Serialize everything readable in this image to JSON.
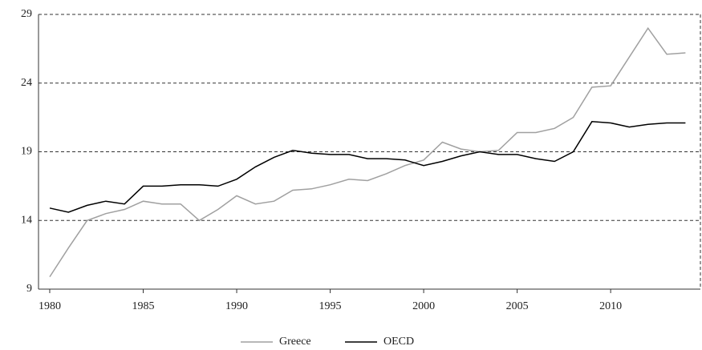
{
  "chart_data": {
    "type": "line",
    "x": [
      1980,
      1981,
      1982,
      1983,
      1984,
      1985,
      1986,
      1987,
      1988,
      1989,
      1990,
      1991,
      1992,
      1993,
      1994,
      1995,
      1996,
      1997,
      1998,
      1999,
      2000,
      2001,
      2002,
      2003,
      2004,
      2005,
      2006,
      2007,
      2008,
      2009,
      2010,
      2011,
      2012,
      2013,
      2014
    ],
    "series": [
      {
        "name": "Greece",
        "color": "#a0a0a0",
        "values": [
          9.9,
          12.0,
          14.0,
          14.5,
          14.8,
          15.4,
          15.2,
          15.2,
          14.0,
          14.8,
          15.8,
          15.2,
          15.4,
          16.2,
          16.3,
          16.6,
          17.0,
          16.9,
          17.4,
          18.0,
          18.4,
          19.7,
          19.2,
          19.0,
          19.1,
          20.4,
          20.4,
          20.7,
          21.5,
          23.7,
          23.8,
          25.9,
          28.0,
          26.1,
          26.2
        ]
      },
      {
        "name": "OECD",
        "color": "#000000",
        "values": [
          14.9,
          14.6,
          15.1,
          15.4,
          15.2,
          16.5,
          16.5,
          16.6,
          16.6,
          16.5,
          17.0,
          17.9,
          18.6,
          19.1,
          18.9,
          18.8,
          18.8,
          18.5,
          18.5,
          18.4,
          18.0,
          18.3,
          18.7,
          19.0,
          18.8,
          18.8,
          18.5,
          18.3,
          19.0,
          21.2,
          21.1,
          20.8,
          21.0,
          21.1,
          21.1
        ]
      }
    ],
    "xlim": [
      1979.4,
      2014.8
    ],
    "xticks": [
      1980,
      1985,
      1990,
      1995,
      2000,
      2005,
      2010
    ],
    "ylim": [
      9,
      29
    ],
    "yticks": [
      9,
      14,
      19,
      24,
      29
    ],
    "grid": true,
    "legend": "bottom"
  }
}
